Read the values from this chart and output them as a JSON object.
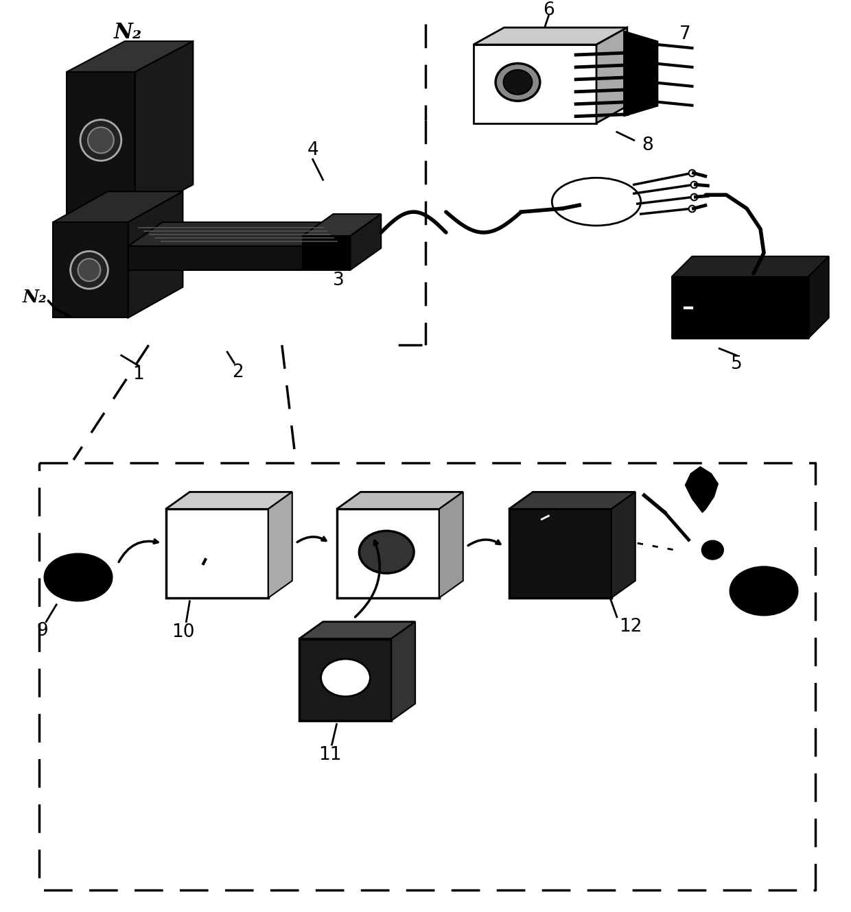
{
  "background_color": "#ffffff",
  "labels": {
    "N2_top": "N₂",
    "N2_bottom": "N₂",
    "1": "1",
    "2": "2",
    "3": "3",
    "4": "4",
    "5": "5",
    "6": "6",
    "7": "7",
    "8": "8",
    "9": "9",
    "10": "10",
    "11": "11",
    "12": "12"
  },
  "figsize": [
    12.4,
    13.3
  ],
  "dpi": 100
}
